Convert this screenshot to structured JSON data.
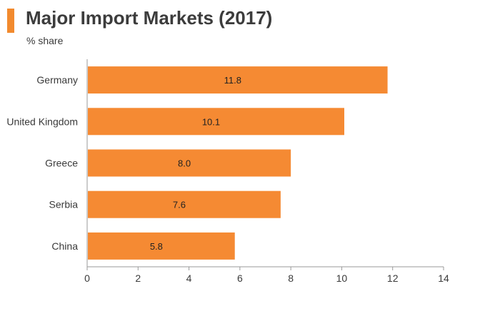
{
  "header": {
    "title": "Major Import Markets (2017)",
    "subtitle": "% share"
  },
  "colors": {
    "accent": "#f28a2e",
    "bar": "#f58a33",
    "axis": "#9a9a9a",
    "text": "#3a3a3a"
  },
  "chart_data": {
    "type": "bar",
    "orientation": "horizontal",
    "title": "Major Import Markets (2017)",
    "subtitle": "% share",
    "categories": [
      "Germany",
      "United Kingdom",
      "Greece",
      "Serbia",
      "China"
    ],
    "values": [
      11.8,
      10.1,
      8.0,
      7.6,
      5.8
    ],
    "value_labels": [
      "11.8",
      "10.1",
      "8.0",
      "7.6",
      "5.8"
    ],
    "xlim": [
      0,
      14
    ],
    "xticks": [
      0,
      2,
      4,
      6,
      8,
      10,
      12,
      14
    ],
    "grid": false,
    "legend": "none"
  }
}
